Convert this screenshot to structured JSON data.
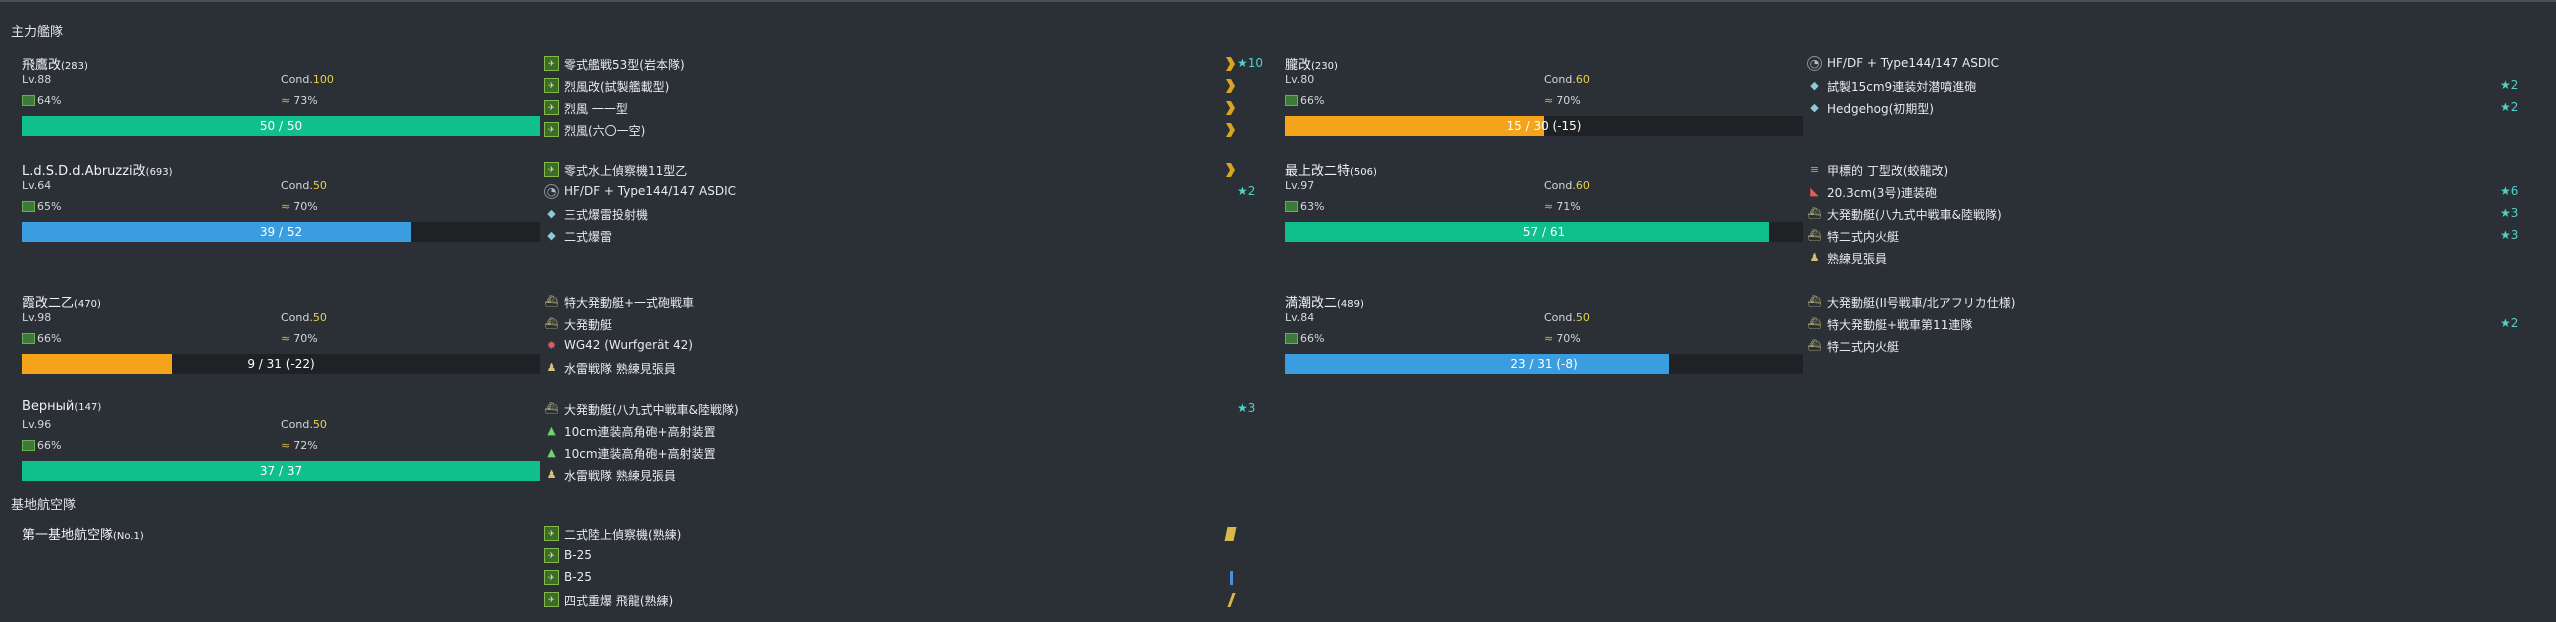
{
  "sections": {
    "main_fleet": "主力艦隊",
    "base_air": "基地航空隊"
  },
  "ships": [
    {
      "name": "飛鷹改",
      "id": "(283)",
      "lv": "Lv.88",
      "cond_label": "Cond.",
      "cond": "100",
      "fuel": "64%",
      "ammo": "73%",
      "hp": "50 / 50",
      "hp_ratio": 1.0,
      "hp_color": "#0fbf8c",
      "equips": [
        {
          "icon": "plane-icon",
          "name": "零式艦戦53型(岩本隊)",
          "prof": "chevron",
          "stars": "★10"
        },
        {
          "icon": "plane-icon",
          "name": "烈風改(試製艦載型)",
          "prof": "chevron",
          "stars": ""
        },
        {
          "icon": "plane-icon",
          "name": "烈風 一一型",
          "prof": "chevron",
          "stars": ""
        },
        {
          "icon": "plane-icon",
          "name": "烈風(六〇一空)",
          "prof": "chevron",
          "stars": ""
        }
      ]
    },
    {
      "name": "朧改",
      "id": "(230)",
      "lv": "Lv.80",
      "cond_label": "Cond.",
      "cond": "60",
      "fuel": "66%",
      "ammo": "70%",
      "hp": "15 / 30 (-15)",
      "hp_ratio": 0.5,
      "hp_color": "#f4a31a",
      "equips": [
        {
          "icon": "sonar-icon",
          "name": "HF/DF + Type144/147 ASDIC",
          "prof": "",
          "stars": ""
        },
        {
          "icon": "depth-charge-icon",
          "name": "試製15cm9連装対潜噴進砲",
          "prof": "",
          "stars": "★2"
        },
        {
          "icon": "depth-charge-icon",
          "name": "Hedgehog(初期型)",
          "prof": "",
          "stars": "★2"
        }
      ]
    },
    {
      "name": "L.d.S.D.d.Abruzzi改",
      "id": "(693)",
      "lv": "Lv.64",
      "cond_label": "Cond.",
      "cond": "50",
      "fuel": "65%",
      "ammo": "70%",
      "hp": "39 / 52",
      "hp_ratio": 0.75,
      "hp_color": "#3a9de0",
      "equips": [
        {
          "icon": "plane-icon",
          "name": "零式水上偵察機11型乙",
          "prof": "chevron",
          "stars": ""
        },
        {
          "icon": "sonar-icon",
          "name": "HF/DF + Type144/147 ASDIC",
          "prof": "",
          "stars": "★2"
        },
        {
          "icon": "depth-charge-icon",
          "name": "三式爆雷投射機",
          "prof": "",
          "stars": ""
        },
        {
          "icon": "depth-charge-icon",
          "name": "二式爆雷",
          "prof": "",
          "stars": ""
        }
      ]
    },
    {
      "name": "最上改二特",
      "id": "(506)",
      "lv": "Lv.97",
      "cond_label": "Cond.",
      "cond": "60",
      "fuel": "63%",
      "ammo": "71%",
      "hp": "57 / 61",
      "hp_ratio": 0.934,
      "hp_color": "#0fbf8c",
      "equips": [
        {
          "icon": "bulge-icon",
          "name": "甲標的 丁型改(蛟龍改)",
          "prof": "",
          "stars": ""
        },
        {
          "icon": "gun-icon",
          "name": "20.3cm(3号)連装砲",
          "prof": "",
          "stars": "★6"
        },
        {
          "icon": "landing-craft-icon",
          "name": "大発動艇(八九式中戦車&陸戦隊)",
          "prof": "",
          "stars": "★3"
        },
        {
          "icon": "landing-craft-icon",
          "name": "特二式内火艇",
          "prof": "",
          "stars": "★3"
        },
        {
          "icon": "lookout-icon",
          "name": "熟練見張員",
          "prof": "",
          "stars": ""
        }
      ]
    },
    {
      "name": "霞改二乙",
      "id": "(470)",
      "lv": "Lv.98",
      "cond_label": "Cond.",
      "cond": "50",
      "fuel": "66%",
      "ammo": "70%",
      "hp": "9 / 31 (-22)",
      "hp_ratio": 0.29,
      "hp_color": "#f4a31a",
      "equips": [
        {
          "icon": "landing-craft-icon",
          "name": "特大発動艇+一式砲戦車",
          "prof": "",
          "stars": ""
        },
        {
          "icon": "landing-craft-icon",
          "name": "大発動艇",
          "prof": "",
          "stars": ""
        },
        {
          "icon": "rocket-icon",
          "name": "WG42 (Wurfgerät 42)",
          "prof": "",
          "stars": ""
        },
        {
          "icon": "lookout-icon",
          "name": "水雷戦隊 熟練見張員",
          "prof": "",
          "stars": ""
        }
      ]
    },
    {
      "name": "満潮改二",
      "id": "(489)",
      "lv": "Lv.84",
      "cond_label": "Cond.",
      "cond": "50",
      "fuel": "66%",
      "ammo": "70%",
      "hp": "23 / 31 (-8)",
      "hp_ratio": 0.742,
      "hp_color": "#3a9de0",
      "equips": [
        {
          "icon": "landing-craft-icon",
          "name": "大発動艇(II号戦車/北アフリカ仕様)",
          "prof": "",
          "stars": ""
        },
        {
          "icon": "landing-craft-icon",
          "name": "特大発動艇+戦車第11連隊",
          "prof": "",
          "stars": "★2"
        },
        {
          "icon": "landing-craft-icon",
          "name": "特二式内火艇",
          "prof": "",
          "stars": ""
        }
      ]
    },
    {
      "name": "Верный",
      "id": "(147)",
      "lv": "Lv.96",
      "cond_label": "Cond.",
      "cond": "50",
      "fuel": "66%",
      "ammo": "72%",
      "hp": "37 / 37",
      "hp_ratio": 1.0,
      "hp_color": "#0fbf8c",
      "equips": [
        {
          "icon": "landing-craft-icon",
          "name": "大発動艇(八九式中戦車&陸戦隊)",
          "prof": "",
          "stars": "★3"
        },
        {
          "icon": "aa-gun-icon",
          "name": "10cm連装高角砲+高射装置",
          "prof": "",
          "stars": ""
        },
        {
          "icon": "aa-gun-icon",
          "name": "10cm連装高角砲+高射装置",
          "prof": "",
          "stars": ""
        },
        {
          "icon": "lookout-icon",
          "name": "水雷戦隊 熟練見張員",
          "prof": "",
          "stars": ""
        }
      ]
    }
  ],
  "air_base": {
    "name": "第一基地航空隊",
    "id": "(No.1)",
    "equips": [
      {
        "icon": "plane-icon",
        "name": "二式陸上偵察機(熟練)",
        "prof": "tile",
        "stars": ""
      },
      {
        "icon": "plane-icon",
        "name": "B-25",
        "prof": "",
        "stars": ""
      },
      {
        "icon": "plane-icon",
        "name": "B-25",
        "prof": "line",
        "stars": ""
      },
      {
        "icon": "plane-icon",
        "name": "四式重爆 飛龍(熟練)",
        "prof": "slash",
        "stars": ""
      }
    ]
  }
}
